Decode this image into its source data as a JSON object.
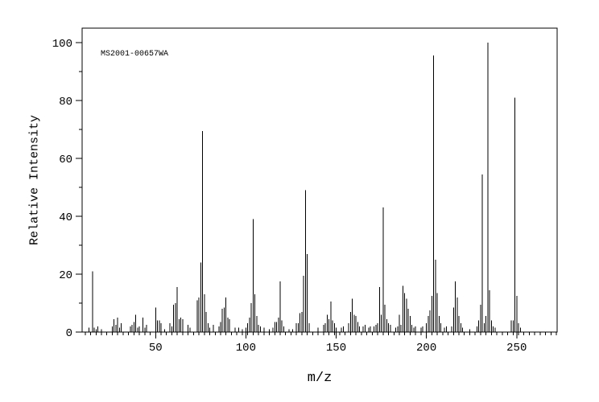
{
  "chart_data": {
    "type": "bar",
    "subtype": "mass-spectrum-stick-plot",
    "annotation": "MS2001-00657WA",
    "xlabel": "m/z",
    "ylabel": "Relative Intensity",
    "x_range": [
      9.3,
      272.4
    ],
    "y_range": [
      0,
      105
    ],
    "x_major_ticks": [
      50,
      100,
      150,
      200,
      250
    ],
    "y_major_ticks": [
      0,
      20,
      40,
      60,
      80,
      100
    ],
    "x_minor_step": 3,
    "y_minor_step": 10,
    "grid": false,
    "legend": false,
    "colors": {
      "foreground": "#000000",
      "background": "#ffffff"
    },
    "peaks": [
      [
        13,
        1.5
      ],
      [
        15,
        21
      ],
      [
        16,
        1.5
      ],
      [
        17,
        1
      ],
      [
        18,
        2
      ],
      [
        20,
        1
      ],
      [
        26,
        2
      ],
      [
        27,
        4.5
      ],
      [
        28,
        2.5
      ],
      [
        29,
        5
      ],
      [
        30,
        1.5
      ],
      [
        31,
        3
      ],
      [
        36,
        2
      ],
      [
        37,
        2.5
      ],
      [
        38,
        3.5
      ],
      [
        39,
        6
      ],
      [
        40,
        1.5
      ],
      [
        41,
        2
      ],
      [
        43,
        5
      ],
      [
        44,
        1.5
      ],
      [
        45,
        2.5
      ],
      [
        50,
        8.5
      ],
      [
        51,
        4
      ],
      [
        52,
        4
      ],
      [
        53,
        3
      ],
      [
        55,
        1
      ],
      [
        58,
        3
      ],
      [
        59,
        2
      ],
      [
        60,
        9.5
      ],
      [
        61,
        10
      ],
      [
        62,
        15.5
      ],
      [
        63,
        4.5
      ],
      [
        64,
        5
      ],
      [
        65,
        4.5
      ],
      [
        68,
        2.5
      ],
      [
        69,
        1.5
      ],
      [
        73,
        11
      ],
      [
        74,
        12
      ],
      [
        75,
        24
      ],
      [
        76,
        69.5
      ],
      [
        77,
        13
      ],
      [
        78,
        7
      ],
      [
        79,
        3
      ],
      [
        80,
        1.5
      ],
      [
        82,
        2.5
      ],
      [
        85,
        2
      ],
      [
        86,
        3.5
      ],
      [
        87,
        8
      ],
      [
        88,
        8.5
      ],
      [
        89,
        12
      ],
      [
        90,
        5
      ],
      [
        91,
        4.5
      ],
      [
        94,
        1.5
      ],
      [
        96,
        1.5
      ],
      [
        98,
        1
      ],
      [
        100,
        1.5
      ],
      [
        101,
        3
      ],
      [
        102,
        5
      ],
      [
        103,
        10
      ],
      [
        104,
        39
      ],
      [
        105,
        13
      ],
      [
        106,
        5.5
      ],
      [
        107,
        2.5
      ],
      [
        108,
        2
      ],
      [
        110,
        1.5
      ],
      [
        113,
        1
      ],
      [
        115,
        1.5
      ],
      [
        116,
        3.5
      ],
      [
        117,
        3.5
      ],
      [
        118,
        5
      ],
      [
        119,
        17.5
      ],
      [
        120,
        4
      ],
      [
        121,
        2
      ],
      [
        124,
        1
      ],
      [
        126,
        1
      ],
      [
        128,
        3
      ],
      [
        129,
        3
      ],
      [
        130,
        6.5
      ],
      [
        131,
        7
      ],
      [
        132,
        19.5
      ],
      [
        133,
        49
      ],
      [
        134,
        27
      ],
      [
        135,
        3
      ],
      [
        140,
        1.5
      ],
      [
        143,
        2.5
      ],
      [
        144,
        3
      ],
      [
        145,
        6
      ],
      [
        146,
        4.5
      ],
      [
        147,
        10.5
      ],
      [
        148,
        4
      ],
      [
        149,
        3
      ],
      [
        150,
        1.5
      ],
      [
        153,
        1.5
      ],
      [
        154,
        2
      ],
      [
        157,
        3
      ],
      [
        158,
        7
      ],
      [
        159,
        11.5
      ],
      [
        160,
        6
      ],
      [
        161,
        5.5
      ],
      [
        162,
        3.5
      ],
      [
        163,
        2
      ],
      [
        165,
        2
      ],
      [
        166,
        2.5
      ],
      [
        168,
        1.5
      ],
      [
        169,
        2
      ],
      [
        171,
        2
      ],
      [
        172,
        2.5
      ],
      [
        173,
        3
      ],
      [
        174,
        15.5
      ],
      [
        175,
        6
      ],
      [
        176,
        43
      ],
      [
        177,
        9.5
      ],
      [
        178,
        4.5
      ],
      [
        179,
        3
      ],
      [
        180,
        2.5
      ],
      [
        183,
        1.5
      ],
      [
        184,
        2
      ],
      [
        185,
        6
      ],
      [
        186,
        2.5
      ],
      [
        187,
        16
      ],
      [
        188,
        13.5
      ],
      [
        189,
        11.5
      ],
      [
        190,
        8
      ],
      [
        191,
        5.5
      ],
      [
        192,
        2.5
      ],
      [
        193,
        1.5
      ],
      [
        194,
        2
      ],
      [
        197,
        1.5
      ],
      [
        198,
        2
      ],
      [
        200,
        3
      ],
      [
        201,
        5.5
      ],
      [
        202,
        7.5
      ],
      [
        203,
        12.5
      ],
      [
        204,
        95.5
      ],
      [
        205,
        25
      ],
      [
        206,
        13.5
      ],
      [
        207,
        5.5
      ],
      [
        208,
        3
      ],
      [
        210,
        1.5
      ],
      [
        211,
        2
      ],
      [
        214,
        2
      ],
      [
        215,
        8.5
      ],
      [
        216,
        17.5
      ],
      [
        217,
        12
      ],
      [
        218,
        5.5
      ],
      [
        219,
        3
      ],
      [
        220,
        1.5
      ],
      [
        224,
        1
      ],
      [
        228,
        2
      ],
      [
        229,
        4
      ],
      [
        230,
        9.5
      ],
      [
        231,
        54.5
      ],
      [
        232,
        3
      ],
      [
        233,
        5.5
      ],
      [
        234,
        100
      ],
      [
        235,
        14.5
      ],
      [
        236,
        4
      ],
      [
        237,
        2
      ],
      [
        238,
        1.5
      ],
      [
        247,
        4
      ],
      [
        248,
        4
      ],
      [
        249,
        81
      ],
      [
        250,
        12.5
      ],
      [
        251,
        3
      ],
      [
        252,
        1.5
      ]
    ]
  }
}
